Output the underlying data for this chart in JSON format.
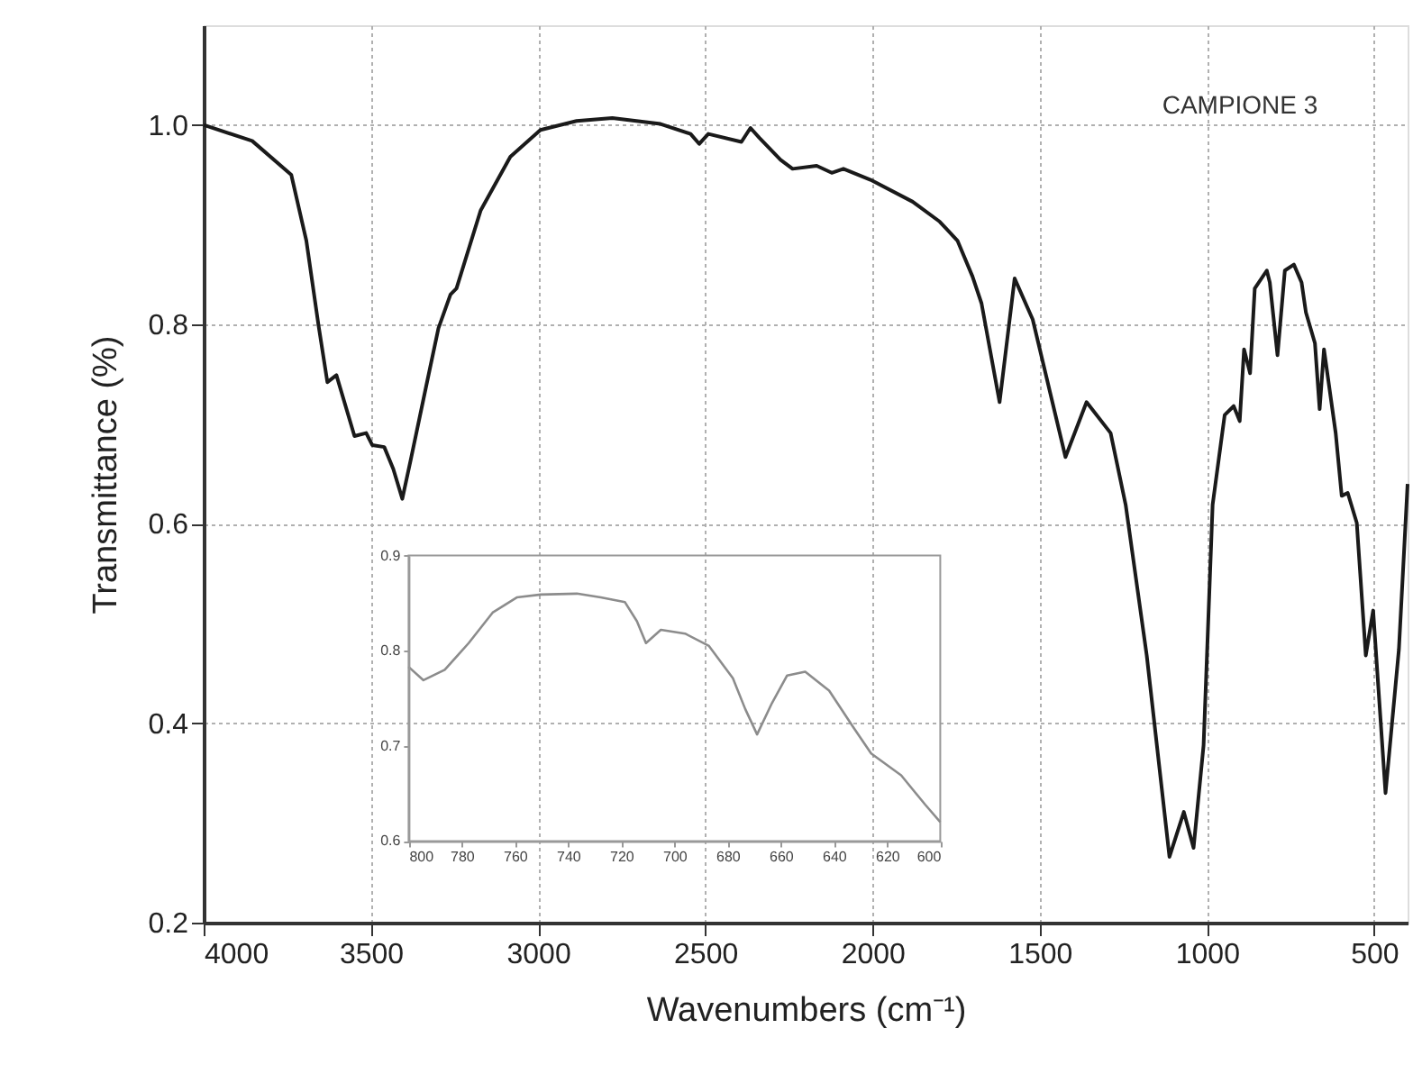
{
  "chart_data": [
    {
      "type": "line",
      "xlabel": "Wavenumbers (cm⁻¹)",
      "ylabel": "Transmittance (%)",
      "annotations": [
        "CAMPIONE 3"
      ],
      "xlim": [
        4000,
        400
      ],
      "xticks": [
        4000,
        3500,
        3000,
        2500,
        2000,
        1500,
        1000,
        500
      ],
      "ylim": [
        0.2,
        1.1
      ],
      "yticks": [
        0.2,
        0.4,
        0.6,
        0.8,
        {
          "value": 1.0,
          "label": "1.0"
        }
      ],
      "grid": true,
      "x": [
        4000,
        3855,
        3738,
        3693,
        3657,
        3630,
        3603,
        3549,
        3514,
        3496,
        3460,
        3433,
        3406,
        3379,
        3334,
        3298,
        3262,
        3244,
        3172,
        3083,
        2993,
        2885,
        2778,
        2634,
        2544,
        2518,
        2491,
        2392,
        2365,
        2338,
        2275,
        2239,
        2167,
        2122,
        2087,
        2006,
        1880,
        1799,
        1746,
        1701,
        1674,
        1620,
        1575,
        1521,
        1423,
        1360,
        1288,
        1243,
        1180,
        1112,
        1069,
        1040,
        1010,
        983,
        947,
        920,
        902,
        889,
        871,
        857,
        821,
        812,
        789,
        767,
        740,
        717,
        704,
        677,
        663,
        650,
        615,
        597,
        579,
        552,
        525,
        503,
        466,
        426,
        400
      ],
      "series": [
        {
          "color": "#1a1a1a",
          "values": [
            1.0,
            0.984,
            0.95,
            0.884,
            0.8,
            0.742,
            0.749,
            0.688,
            0.691,
            0.679,
            0.677,
            0.655,
            0.625,
            0.667,
            0.739,
            0.796,
            0.83,
            0.836,
            0.914,
            0.968,
            0.995,
            1.004,
            1.007,
            1.001,
            0.991,
            0.981,
            0.991,
            0.983,
            0.997,
            0.987,
            0.965,
            0.956,
            0.959,
            0.952,
            0.956,
            0.945,
            0.923,
            0.903,
            0.884,
            0.848,
            0.821,
            0.722,
            0.846,
            0.805,
            0.667,
            0.722,
            0.691,
            0.619,
            0.468,
            0.266,
            0.311,
            0.275,
            0.378,
            0.619,
            0.709,
            0.718,
            0.703,
            0.775,
            0.751,
            0.836,
            0.854,
            0.842,
            0.769,
            0.854,
            0.86,
            0.842,
            0.812,
            0.781,
            0.715,
            0.775,
            0.691,
            0.628,
            0.631,
            0.601,
            0.468,
            0.513,
            0.33,
            0.474,
            0.64
          ]
        }
      ]
    },
    {
      "type": "line",
      "xlim": [
        800,
        600
      ],
      "xticks": [
        800,
        780,
        760,
        740,
        720,
        700,
        680,
        660,
        640,
        620,
        600
      ],
      "ylim": [
        0.6,
        0.9
      ],
      "yticks": [
        0.6,
        0.7,
        0.8,
        0.9
      ],
      "x": [
        800,
        794.4,
        786.4,
        777.4,
        768.4,
        759.3,
        750.3,
        736.7,
        727.7,
        718.6,
        714.1,
        710.7,
        705.1,
        696,
        687,
        678,
        673.4,
        668.9,
        663.3,
        657.6,
        650.8,
        641.8,
        632.8,
        626,
        614.7,
        605.6,
        600
      ],
      "series": [
        {
          "color": "#8c8c8c",
          "values": [
            0.783,
            0.769,
            0.78,
            0.808,
            0.84,
            0.856,
            0.859,
            0.86,
            0.856,
            0.851,
            0.831,
            0.808,
            0.822,
            0.818,
            0.805,
            0.771,
            0.739,
            0.712,
            0.745,
            0.774,
            0.778,
            0.758,
            0.72,
            0.692,
            0.669,
            0.638,
            0.62
          ]
        }
      ]
    }
  ]
}
